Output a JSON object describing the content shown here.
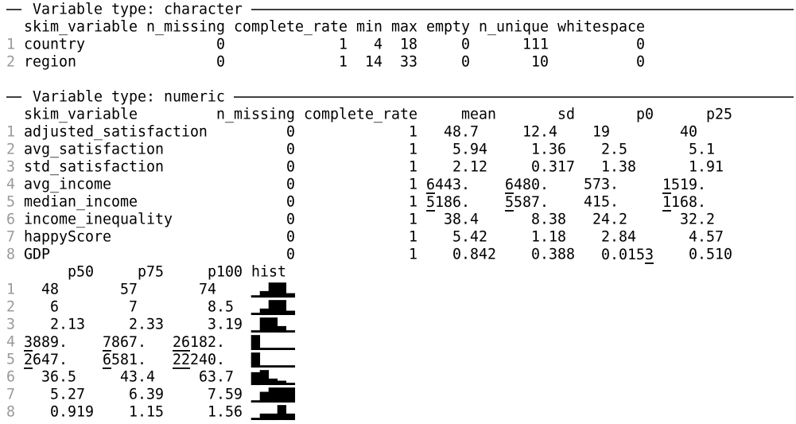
{
  "sections": [
    {
      "title": "Variable type: character",
      "blocks": [
        {
          "columns": [
            "skim_variable",
            "n_missing",
            "complete_rate",
            "min",
            "max",
            "empty",
            "n_unique",
            "whitespace"
          ],
          "row_numbers": [
            "1",
            "2"
          ],
          "rows": [
            [
              "country",
              "0",
              "1",
              "4",
              "18",
              "0",
              "111",
              "0"
            ],
            [
              "region",
              "0",
              "1",
              "14",
              "33",
              "0",
              "10",
              "0"
            ]
          ]
        }
      ]
    },
    {
      "title": "Variable type: numeric",
      "blocks": [
        {
          "columns": [
            "skim_variable",
            "n_missing",
            "complete_rate",
            "mean",
            "sd",
            "p0",
            "p25"
          ],
          "row_numbers": [
            "1",
            "2",
            "3",
            "4",
            "5",
            "6",
            "7",
            "8"
          ],
          "rows": [
            [
              "adjusted_satisfaction",
              "0",
              "1",
              "48.7",
              "12.4",
              "19",
              "40"
            ],
            [
              "avg_satisfaction",
              "0",
              "1",
              "5.94",
              "1.36",
              "2.5",
              "5.1"
            ],
            [
              "std_satisfaction",
              "0",
              "1",
              "2.12",
              "0.317",
              "1.38",
              "1.91"
            ],
            [
              "avg_income",
              "0",
              "1",
              {
                "parts": [
                  {
                    "text": "6",
                    "underline": true
                  },
                  {
                    "text": "443."
                  }
                ]
              },
              {
                "parts": [
                  {
                    "text": "6",
                    "underline": true
                  },
                  {
                    "text": "480."
                  }
                ]
              },
              "573.",
              {
                "parts": [
                  {
                    "text": "1",
                    "underline": true
                  },
                  {
                    "text": "519."
                  }
                ]
              }
            ],
            [
              "median_income",
              "0",
              "1",
              {
                "parts": [
                  {
                    "text": "5",
                    "underline": true
                  },
                  {
                    "text": "186."
                  }
                ]
              },
              {
                "parts": [
                  {
                    "text": "5",
                    "underline": true
                  },
                  {
                    "text": "587."
                  }
                ]
              },
              "415.",
              {
                "parts": [
                  {
                    "text": "1",
                    "underline": true
                  },
                  {
                    "text": "168."
                  }
                ]
              }
            ],
            [
              "income_inequality",
              "0",
              "1",
              "38.4",
              "8.38",
              "24.2",
              "32.2"
            ],
            [
              "happyScore",
              "0",
              "1",
              "5.42",
              "1.18",
              "2.84",
              "4.57"
            ],
            [
              "GDP",
              "0",
              "1",
              "0.842",
              "0.388",
              {
                "parts": [
                  {
                    "text": "0.015"
                  },
                  {
                    "text": "3",
                    "underline": true
                  }
                ]
              },
              "0.510"
            ]
          ]
        },
        {
          "columns": [
            "p50",
            "p75",
            "p100",
            "hist"
          ],
          "row_numbers": [
            "1",
            "2",
            "3",
            "4",
            "5",
            "6",
            "7",
            "8"
          ],
          "rows": [
            [
              "48",
              "57",
              "74",
              "▁▃▇▇▂"
            ],
            [
              "6",
              "7",
              "8.5",
              "▁▃▇▇▂"
            ],
            [
              "2.13",
              "2.33",
              "3.19",
              "▁▇▇▃▁"
            ],
            [
              {
                "parts": [
                  {
                    "text": "3",
                    "underline": true
                  },
                  {
                    "text": "889."
                  }
                ]
              },
              {
                "parts": [
                  {
                    "text": "7",
                    "underline": true
                  },
                  {
                    "text": "867."
                  }
                ]
              },
              {
                "parts": [
                  {
                    "text": "26",
                    "underline": true
                  },
                  {
                    "text": "182."
                  }
                ]
              },
              "▇▁▁▁▁"
            ],
            [
              {
                "parts": [
                  {
                    "text": "2",
                    "underline": true
                  },
                  {
                    "text": "647."
                  }
                ]
              },
              {
                "parts": [
                  {
                    "text": "6",
                    "underline": true
                  },
                  {
                    "text": "581."
                  }
                ]
              },
              {
                "parts": [
                  {
                    "text": "22",
                    "underline": true
                  },
                  {
                    "text": "240."
                  }
                ]
              },
              "▇▁▁▁▁"
            ],
            [
              "36.5",
              "43.4",
              "63.7",
              "▆▇▃▂▁"
            ],
            [
              "5.27",
              "6.39",
              "7.59",
              "▁▅▇▇▇"
            ],
            [
              "0.919",
              "1.15",
              "1.56",
              "▁▃▃▇▃"
            ]
          ]
        }
      ]
    }
  ]
}
